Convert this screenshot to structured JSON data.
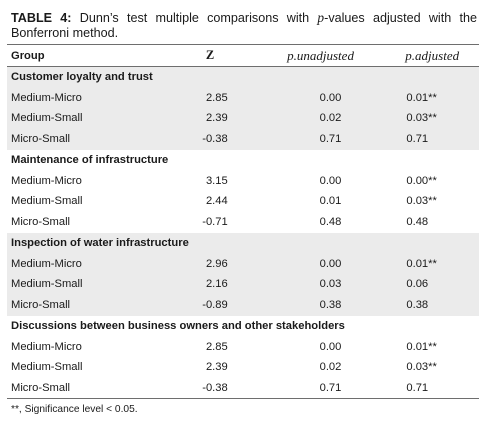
{
  "caption": {
    "label": "TABLE 4:",
    "text_before": "Dunn’s test multiple comparisons with",
    "p_italic": "p",
    "text_after": "-values adjusted with the Bonferroni method."
  },
  "columns": {
    "group": "Group",
    "z": "Z",
    "p_unadjusted": "p.unadjusted",
    "p_adjusted": "p.adjusted"
  },
  "sections": [
    {
      "title": "Customer loyalty and trust",
      "rows": [
        {
          "group": "Medium-Micro",
          "z": "2.85",
          "p_unadjusted": "0.00",
          "p_adjusted": "0.01**"
        },
        {
          "group": "Medium-Small",
          "z": "2.39",
          "p_unadjusted": "0.02",
          "p_adjusted": "0.03**"
        },
        {
          "group": "Micro-Small",
          "z": "-0.38",
          "p_unadjusted": "0.71",
          "p_adjusted": "0.71"
        }
      ]
    },
    {
      "title": "Maintenance of infrastructure",
      "rows": [
        {
          "group": "Medium-Micro",
          "z": "3.15",
          "p_unadjusted": "0.00",
          "p_adjusted": "0.00**"
        },
        {
          "group": "Medium-Small",
          "z": "2.44",
          "p_unadjusted": "0.01",
          "p_adjusted": "0.03**"
        },
        {
          "group": "Micro-Small",
          "z": "-0.71",
          "p_unadjusted": "0.48",
          "p_adjusted": "0.48"
        }
      ]
    },
    {
      "title": "Inspection of water infrastructure",
      "rows": [
        {
          "group": "Medium-Micro",
          "z": "2.96",
          "p_unadjusted": "0.00",
          "p_adjusted": "0.01**"
        },
        {
          "group": "Medium-Small",
          "z": "2.16",
          "p_unadjusted": "0.03",
          "p_adjusted": "0.06"
        },
        {
          "group": "Micro-Small",
          "z": "-0.89",
          "p_unadjusted": "0.38",
          "p_adjusted": "0.38"
        }
      ]
    },
    {
      "title": "Discussions between business owners and other stakeholders",
      "rows": [
        {
          "group": "Medium-Micro",
          "z": "2.85",
          "p_unadjusted": "0.00",
          "p_adjusted": "0.01**"
        },
        {
          "group": "Medium-Small",
          "z": "2.39",
          "p_unadjusted": "0.02",
          "p_adjusted": "0.03**"
        },
        {
          "group": "Micro-Small",
          "z": "-0.38",
          "p_unadjusted": "0.71",
          "p_adjusted": "0.71"
        }
      ]
    }
  ],
  "footnote": "**, Significance level < 0.05.",
  "colors": {
    "shade": "#ebebeb",
    "rule": "#6e6e6e"
  }
}
